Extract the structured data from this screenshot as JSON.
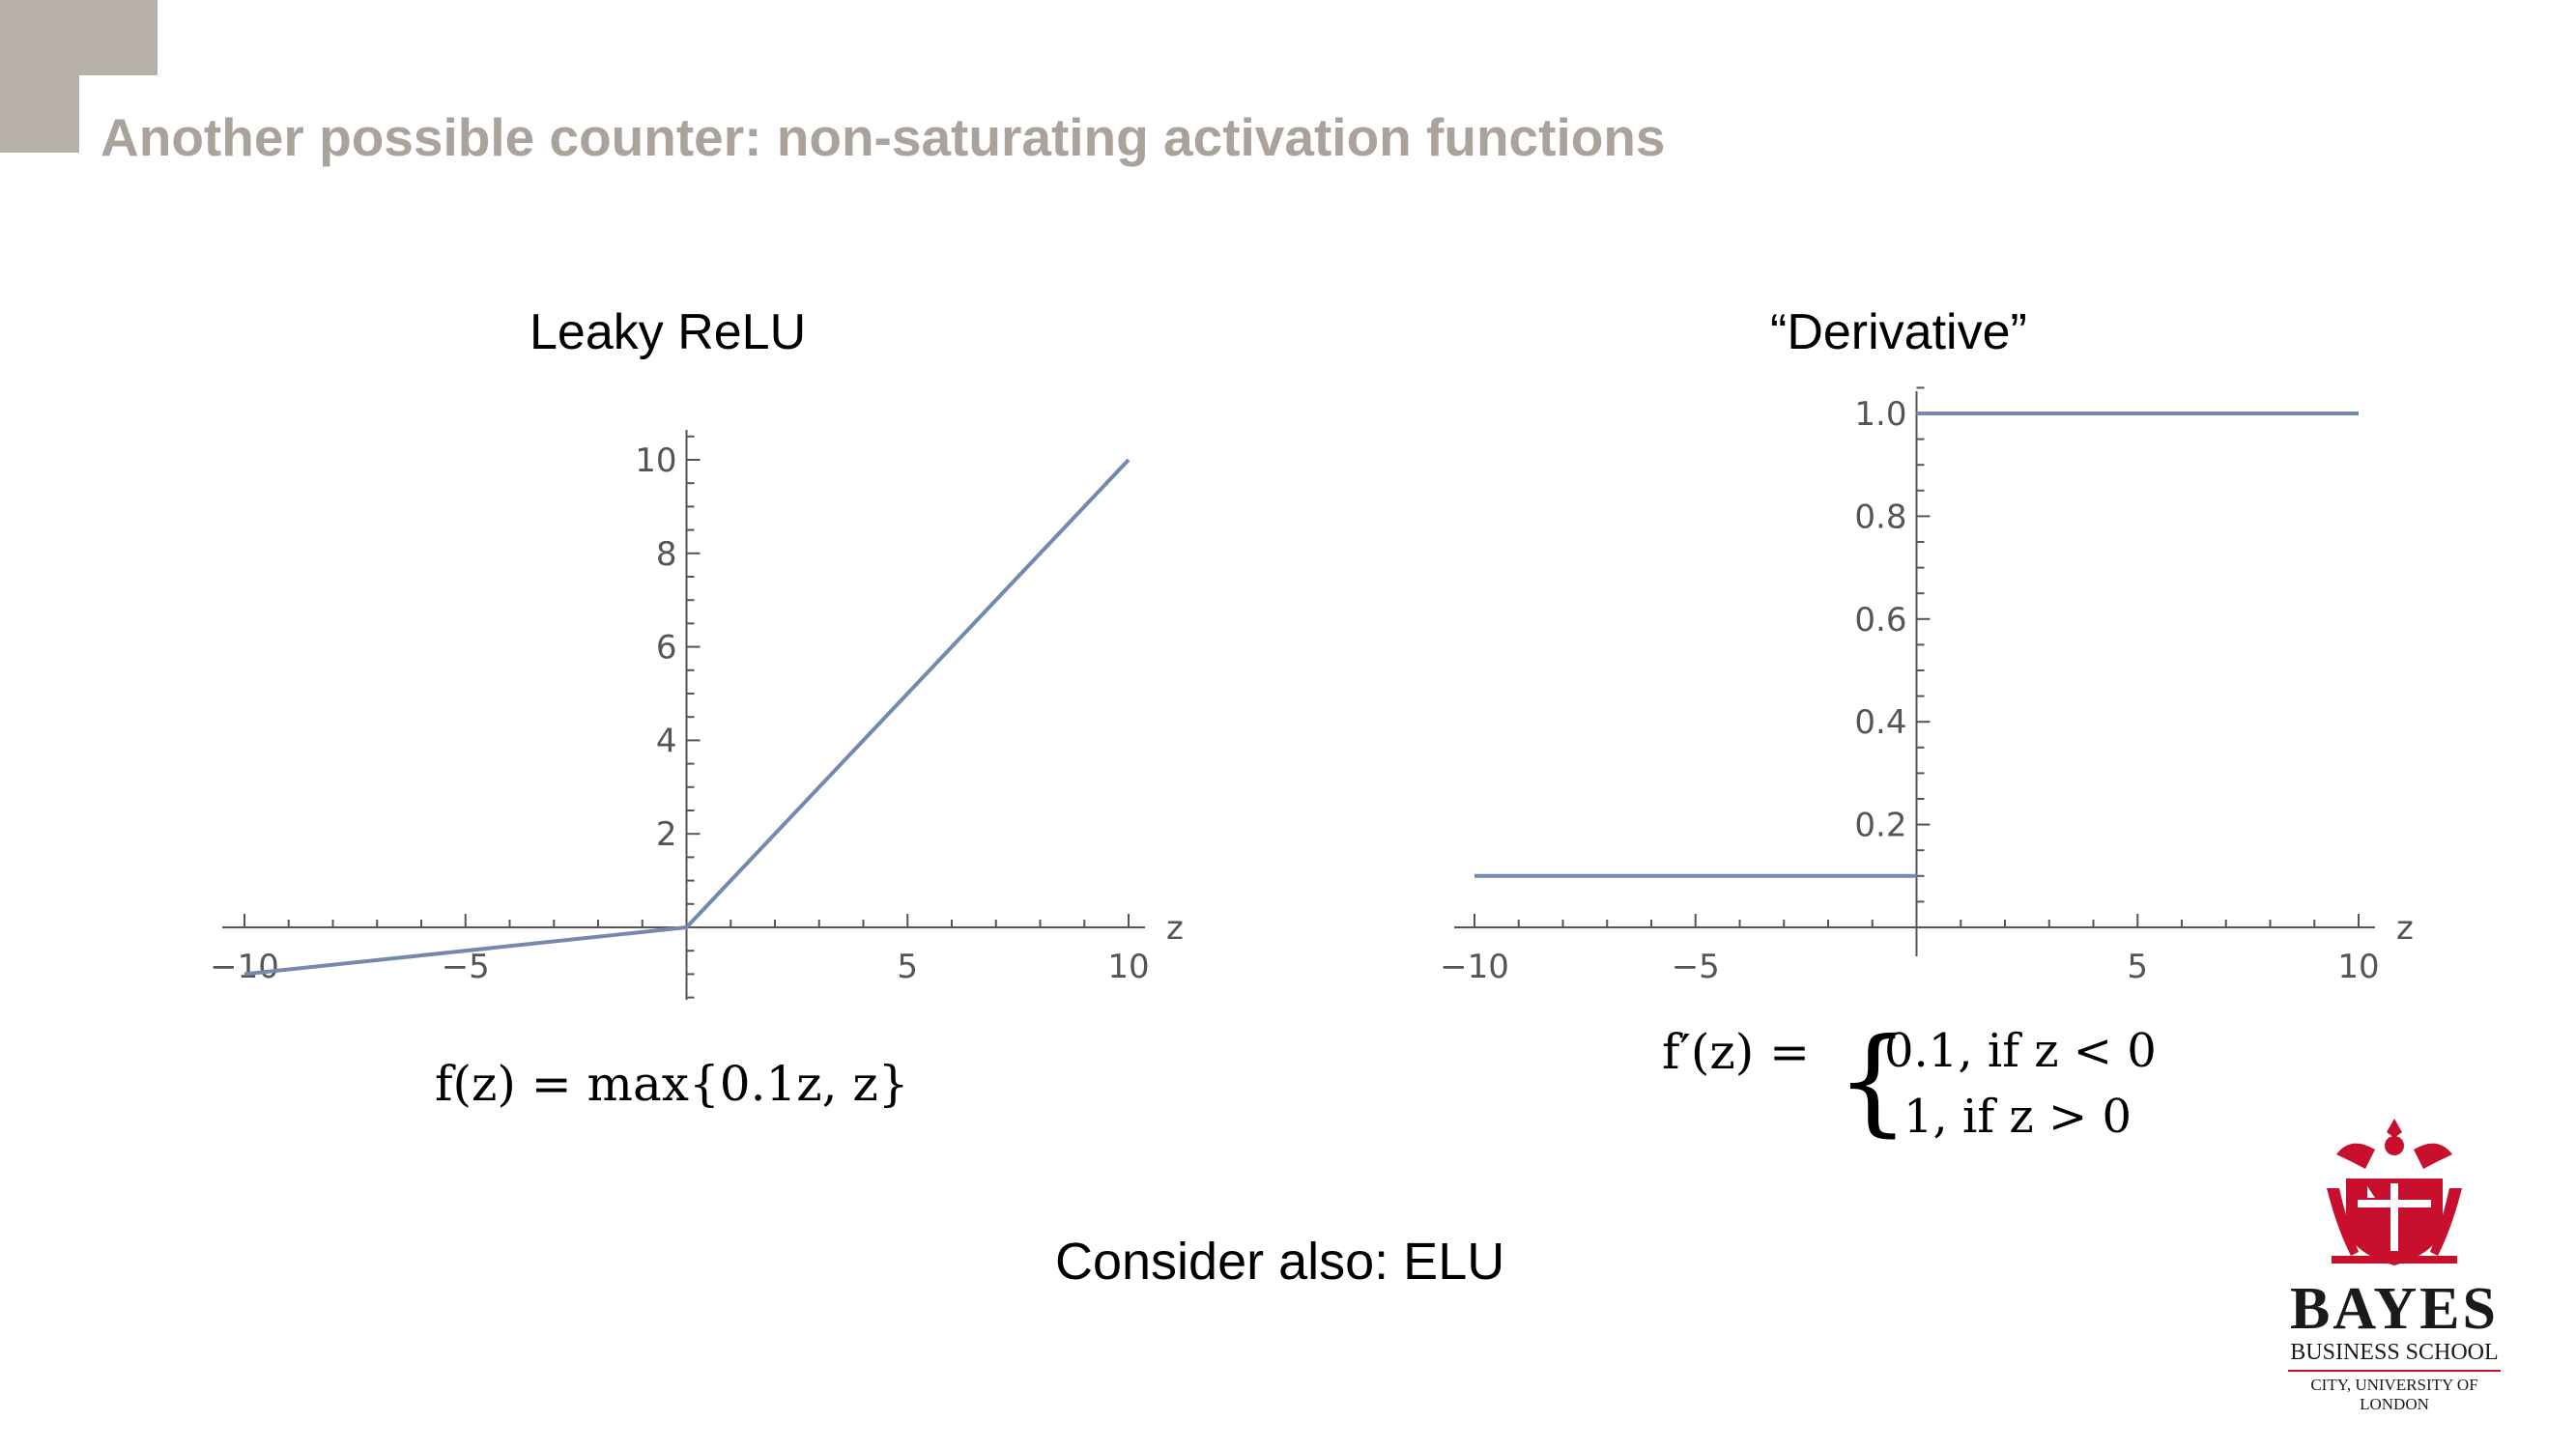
{
  "slide": {
    "title": "Another possible counter: non-saturating activation functions",
    "formula_left": "f(z) = max{0.1z, z}",
    "formula_right_lhs": "f′(z) =",
    "formula_right_case1": "0.1, if z < 0",
    "formula_right_case2": "1, if z > 0",
    "footnote": "Consider also: ELU",
    "logo": {
      "name": "BAYES",
      "line1": "BUSINESS SCHOOL",
      "line2": "CITY, UNIVERSITY OF LONDON",
      "accent_color": "#c8102e"
    }
  },
  "chart_data": [
    {
      "type": "line",
      "title": "Leaky ReLU",
      "xlabel": "z",
      "ylabel": "",
      "xlim": [
        -10,
        10
      ],
      "ylim": [
        -1,
        10
      ],
      "xticks": [
        -10,
        -5,
        5,
        10
      ],
      "yticks": [
        2,
        4,
        6,
        8,
        10
      ],
      "series": [
        {
          "x": [
            -10,
            0,
            10
          ],
          "y": [
            -1,
            0,
            10
          ],
          "color": "#7389ad"
        }
      ]
    },
    {
      "type": "line",
      "title": "“Derivative”",
      "xlabel": "z",
      "ylabel": "",
      "xlim": [
        -10,
        10
      ],
      "ylim": [
        0,
        1
      ],
      "xticks": [
        -10,
        -5,
        5,
        10
      ],
      "yticks": [
        "0.2",
        "0.4",
        "0.6",
        "0.8",
        "1.0"
      ],
      "series": [
        {
          "x": [
            -10,
            0
          ],
          "y": [
            0.1,
            0.1
          ],
          "color": "#7389ad"
        },
        {
          "x": [
            0,
            10
          ],
          "y": [
            1,
            1
          ],
          "color": "#7389ad"
        }
      ]
    }
  ]
}
